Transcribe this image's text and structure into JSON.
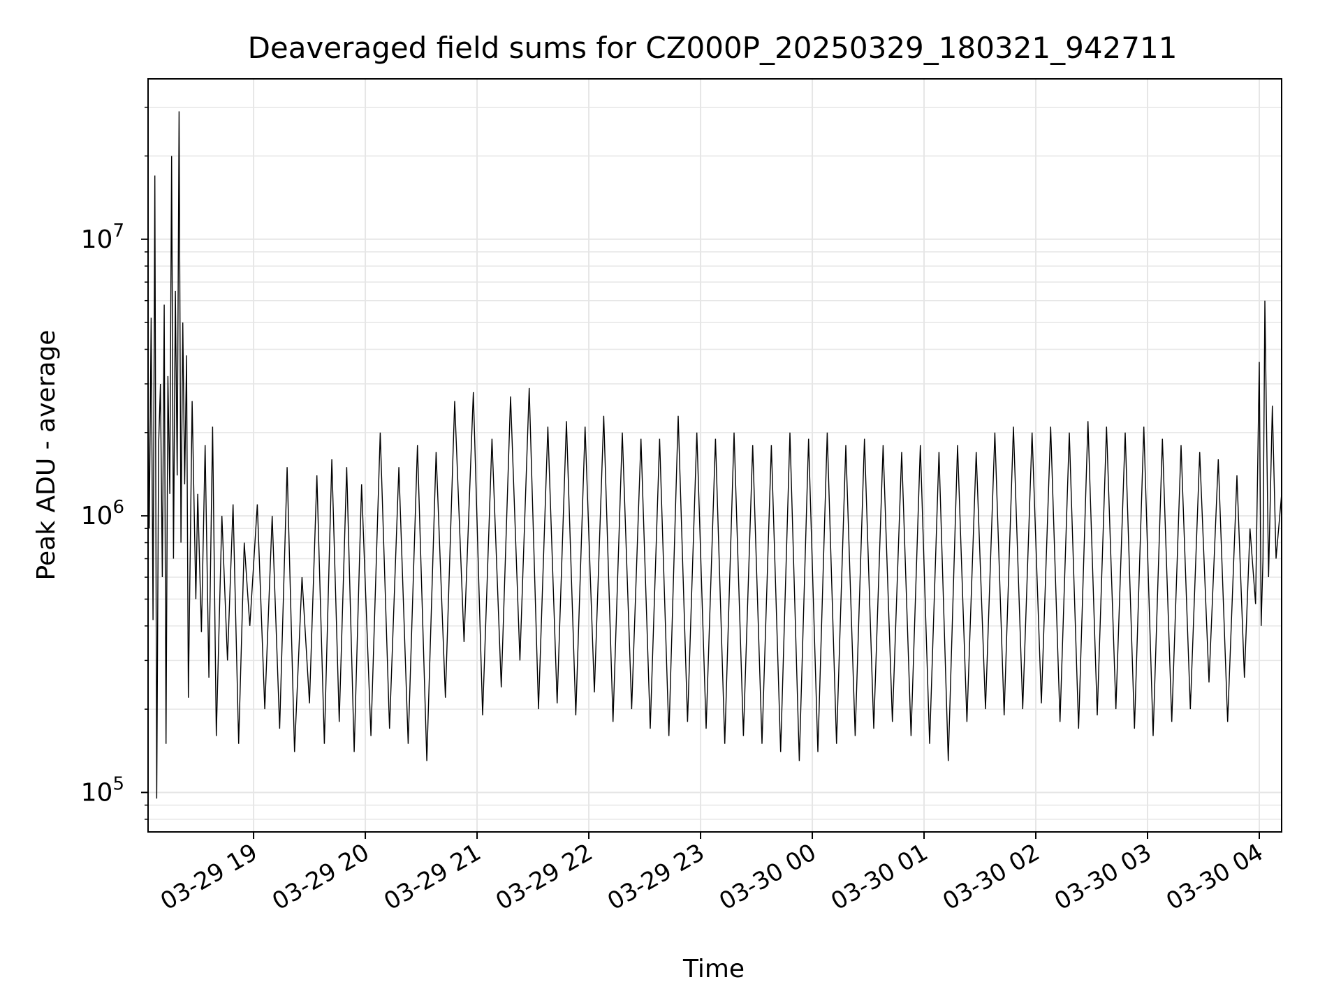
{
  "chart_data": {
    "type": "line",
    "title": "Deaveraged field sums for CZ000P_20250329_180321_942711",
    "xlabel": "Time",
    "ylabel": "Peak ADU - average",
    "x_type": "datetime",
    "xlim": [
      "2025-03-29 18:03:21",
      "2025-03-30 04:12:00"
    ],
    "y_scale": "log",
    "ylim": [
      72000,
      38000000
    ],
    "x_ticks": [
      {
        "value": "2025-03-29 19:00",
        "label": "03-29 19"
      },
      {
        "value": "2025-03-29 20:00",
        "label": "03-29 20"
      },
      {
        "value": "2025-03-29 21:00",
        "label": "03-29 21"
      },
      {
        "value": "2025-03-29 22:00",
        "label": "03-29 22"
      },
      {
        "value": "2025-03-29 23:00",
        "label": "03-29 23"
      },
      {
        "value": "2025-03-30 00:00",
        "label": "03-30 00"
      },
      {
        "value": "2025-03-30 01:00",
        "label": "03-30 01"
      },
      {
        "value": "2025-03-30 02:00",
        "label": "03-30 02"
      },
      {
        "value": "2025-03-30 03:00",
        "label": "03-30 03"
      },
      {
        "value": "2025-03-30 04:00",
        "label": "03-30 04"
      }
    ],
    "y_ticks": [
      {
        "value": 100000,
        "base": "10",
        "exp": "5"
      },
      {
        "value": 1000000,
        "base": "10",
        "exp": "6"
      },
      {
        "value": 10000000,
        "base": "10",
        "exp": "7"
      }
    ],
    "grid": true,
    "line_color": "#000000",
    "series": [
      {
        "x": [
          "2025-03-29 18:03:21",
          "2025-03-29 18:04:00",
          "2025-03-29 18:05:00",
          "2025-03-29 18:06:00",
          "2025-03-29 18:07:00",
          "2025-03-29 18:08:00",
          "2025-03-29 18:09:00",
          "2025-03-29 18:10:00",
          "2025-03-29 18:11:00",
          "2025-03-29 18:12:00",
          "2025-03-29 18:13:00",
          "2025-03-29 18:14:00",
          "2025-03-29 18:15:00",
          "2025-03-29 18:16:00",
          "2025-03-29 18:17:00",
          "2025-03-29 18:18:00",
          "2025-03-29 18:19:00",
          "2025-03-29 18:20:00",
          "2025-03-29 18:21:00",
          "2025-03-29 18:22:00",
          "2025-03-29 18:23:00",
          "2025-03-29 18:24:00",
          "2025-03-29 18:25:00",
          "2025-03-29 18:27:00",
          "2025-03-29 18:29:00",
          "2025-03-29 18:30:00",
          "2025-03-29 18:32:00",
          "2025-03-29 18:34:00",
          "2025-03-29 18:36:00",
          "2025-03-29 18:38:00",
          "2025-03-29 18:40:00",
          "2025-03-29 18:43:00",
          "2025-03-29 18:46:00",
          "2025-03-29 18:49:00",
          "2025-03-29 18:52:00",
          "2025-03-29 18:55:00",
          "2025-03-29 18:58:00",
          "2025-03-29 19:02:00",
          "2025-03-29 19:06:00",
          "2025-03-29 19:10:00",
          "2025-03-29 19:14:00",
          "2025-03-29 19:18:00",
          "2025-03-29 19:22:00",
          "2025-03-29 19:26:00",
          "2025-03-29 19:30:00",
          "2025-03-29 19:34:00",
          "2025-03-29 19:38:00",
          "2025-03-29 19:42:00",
          "2025-03-29 19:46:00",
          "2025-03-29 19:50:00",
          "2025-03-29 19:54:00",
          "2025-03-29 19:58:00",
          "2025-03-29 20:03:00",
          "2025-03-29 20:08:00",
          "2025-03-29 20:13:00",
          "2025-03-29 20:18:00",
          "2025-03-29 20:23:00",
          "2025-03-29 20:28:00",
          "2025-03-29 20:33:00",
          "2025-03-29 20:38:00",
          "2025-03-29 20:43:00",
          "2025-03-29 20:48:00",
          "2025-03-29 20:53:00",
          "2025-03-29 20:58:00",
          "2025-03-29 21:03:00",
          "2025-03-29 21:08:00",
          "2025-03-29 21:13:00",
          "2025-03-29 21:18:00",
          "2025-03-29 21:23:00",
          "2025-03-29 21:28:00",
          "2025-03-29 21:33:00",
          "2025-03-29 21:38:00",
          "2025-03-29 21:43:00",
          "2025-03-29 21:48:00",
          "2025-03-29 21:53:00",
          "2025-03-29 21:58:00",
          "2025-03-29 22:03:00",
          "2025-03-29 22:08:00",
          "2025-03-29 22:13:00",
          "2025-03-29 22:18:00",
          "2025-03-29 22:23:00",
          "2025-03-29 22:28:00",
          "2025-03-29 22:33:00",
          "2025-03-29 22:38:00",
          "2025-03-29 22:43:00",
          "2025-03-29 22:48:00",
          "2025-03-29 22:53:00",
          "2025-03-29 22:58:00",
          "2025-03-29 23:03:00",
          "2025-03-29 23:08:00",
          "2025-03-29 23:13:00",
          "2025-03-29 23:18:00",
          "2025-03-29 23:23:00",
          "2025-03-29 23:28:00",
          "2025-03-29 23:33:00",
          "2025-03-29 23:38:00",
          "2025-03-29 23:43:00",
          "2025-03-29 23:48:00",
          "2025-03-29 23:53:00",
          "2025-03-29 23:58:00",
          "2025-03-30 00:03:00",
          "2025-03-30 00:08:00",
          "2025-03-30 00:13:00",
          "2025-03-30 00:18:00",
          "2025-03-30 00:23:00",
          "2025-03-30 00:28:00",
          "2025-03-30 00:33:00",
          "2025-03-30 00:38:00",
          "2025-03-30 00:43:00",
          "2025-03-30 00:48:00",
          "2025-03-30 00:53:00",
          "2025-03-30 00:58:00",
          "2025-03-30 01:03:00",
          "2025-03-30 01:08:00",
          "2025-03-30 01:13:00",
          "2025-03-30 01:18:00",
          "2025-03-30 01:23:00",
          "2025-03-30 01:28:00",
          "2025-03-30 01:33:00",
          "2025-03-30 01:38:00",
          "2025-03-30 01:43:00",
          "2025-03-30 01:48:00",
          "2025-03-30 01:53:00",
          "2025-03-30 01:58:00",
          "2025-03-30 02:03:00",
          "2025-03-30 02:08:00",
          "2025-03-30 02:13:00",
          "2025-03-30 02:18:00",
          "2025-03-30 02:23:00",
          "2025-03-30 02:28:00",
          "2025-03-30 02:33:00",
          "2025-03-30 02:38:00",
          "2025-03-30 02:43:00",
          "2025-03-30 02:48:00",
          "2025-03-30 02:53:00",
          "2025-03-30 02:58:00",
          "2025-03-30 03:03:00",
          "2025-03-30 03:08:00",
          "2025-03-30 03:13:00",
          "2025-03-30 03:18:00",
          "2025-03-30 03:23:00",
          "2025-03-30 03:28:00",
          "2025-03-30 03:33:00",
          "2025-03-30 03:38:00",
          "2025-03-30 03:43:00",
          "2025-03-30 03:48:00",
          "2025-03-30 03:52:00",
          "2025-03-30 03:55:00",
          "2025-03-30 03:58:00",
          "2025-03-30 04:00:00",
          "2025-03-30 04:01:00",
          "2025-03-30 04:02:00",
          "2025-03-30 04:03:00",
          "2025-03-30 04:05:00",
          "2025-03-30 04:07:00",
          "2025-03-30 04:09:00",
          "2025-03-30 04:12:00"
        ],
        "y": [
          2800000,
          900000,
          5200000,
          420000,
          17000000,
          95000,
          1800000,
          3000000,
          600000,
          5800000,
          150000,
          3200000,
          1200000,
          20000000,
          700000,
          6500000,
          1400000,
          29000000,
          800000,
          5000000,
          1300000,
          3800000,
          220000,
          2600000,
          500000,
          1200000,
          380000,
          1800000,
          260000,
          2100000,
          160000,
          1000000,
          300000,
          1100000,
          150000,
          800000,
          400000,
          1100000,
          200000,
          1000000,
          170000,
          1500000,
          140000,
          600000,
          210000,
          1400000,
          150000,
          1600000,
          180000,
          1500000,
          140000,
          1300000,
          160000,
          2000000,
          170000,
          1500000,
          150000,
          1800000,
          130000,
          1700000,
          220000,
          2600000,
          350000,
          2800000,
          190000,
          1900000,
          240000,
          2700000,
          300000,
          2900000,
          200000,
          2100000,
          210000,
          2200000,
          190000,
          2100000,
          230000,
          2300000,
          180000,
          2000000,
          200000,
          1900000,
          170000,
          1900000,
          160000,
          2300000,
          180000,
          2000000,
          170000,
          1900000,
          150000,
          2000000,
          160000,
          1800000,
          150000,
          1800000,
          140000,
          2000000,
          130000,
          1900000,
          140000,
          2000000,
          150000,
          1800000,
          160000,
          1900000,
          170000,
          1800000,
          180000,
          1700000,
          160000,
          1800000,
          150000,
          1700000,
          130000,
          1800000,
          180000,
          1700000,
          200000,
          2000000,
          190000,
          2100000,
          200000,
          2000000,
          210000,
          2100000,
          180000,
          2000000,
          170000,
          2200000,
          190000,
          2100000,
          200000,
          2000000,
          170000,
          2100000,
          160000,
          1900000,
          180000,
          1800000,
          200000,
          1700000,
          250000,
          1600000,
          180000,
          1400000,
          260000,
          900000,
          480000,
          3600000,
          400000,
          700000,
          6000000,
          600000,
          2500000,
          700000,
          1200000
        ]
      }
    ]
  }
}
